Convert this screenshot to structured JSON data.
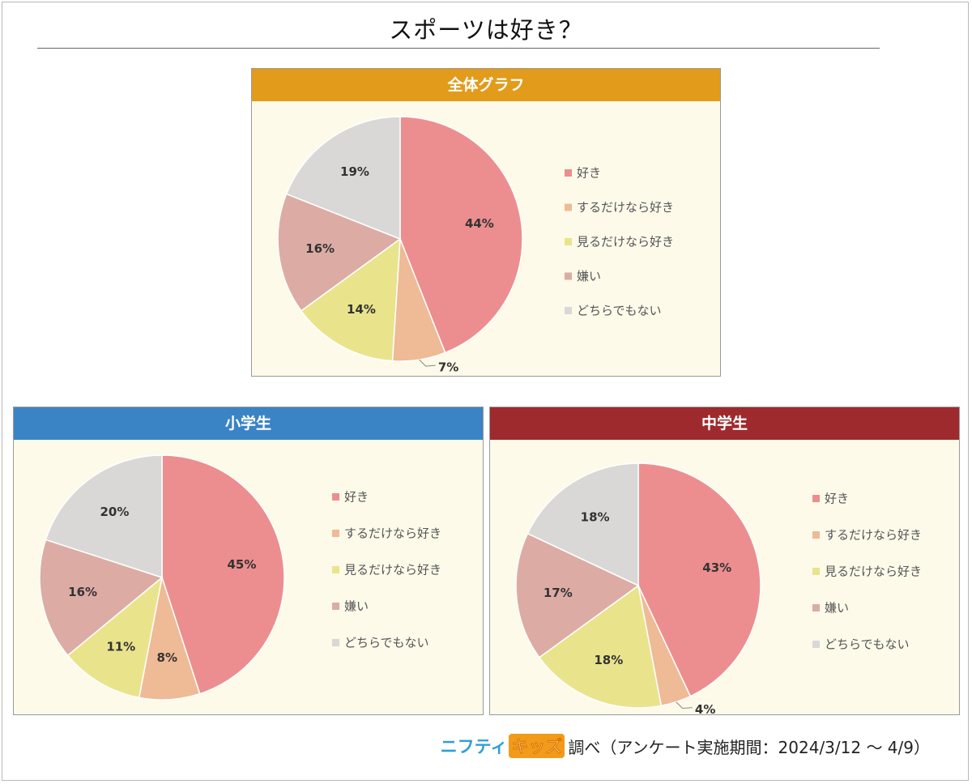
{
  "page": {
    "title": "スポーツは好き？"
  },
  "colors": {
    "like": "#ec8e8f",
    "do_only": "#efba96",
    "watch_only": "#e9e48c",
    "dislike": "#dcaca4",
    "neither": "#d9d8d7"
  },
  "legend": [
    "好き",
    "するだけなら好き",
    "見るだけなら好き",
    "嫌い",
    "どちらでもない"
  ],
  "chart_data": [
    {
      "type": "pie",
      "title": "全体グラフ",
      "header_color": "#e29b1b",
      "categories": [
        "好き",
        "するだけなら好き",
        "見るだけなら好き",
        "嫌い",
        "どちらでもない"
      ],
      "values": [
        44,
        7,
        14,
        16,
        19
      ],
      "labels": [
        "44%",
        "7%",
        "14%",
        "16%",
        "19%"
      ],
      "legend_position": "right"
    },
    {
      "type": "pie",
      "title": "小学生",
      "header_color": "#3a84c6",
      "categories": [
        "好き",
        "するだけなら好き",
        "見るだけなら好き",
        "嫌い",
        "どちらでもない"
      ],
      "values": [
        45,
        8,
        11,
        16,
        20
      ],
      "labels": [
        "45%",
        "8%",
        "11%",
        "16%",
        "20%"
      ],
      "legend_position": "right"
    },
    {
      "type": "pie",
      "title": "中学生",
      "header_color": "#9e2a2d",
      "categories": [
        "好き",
        "するだけなら好き",
        "見るだけなら好き",
        "嫌い",
        "どちらでもない"
      ],
      "values": [
        43,
        4,
        18,
        17,
        18
      ],
      "labels": [
        "43%",
        "4%",
        "18%",
        "17%",
        "18%"
      ],
      "legend_position": "right"
    }
  ],
  "footer": {
    "logo_part1": "ニフティ",
    "logo_part2": "キッズ",
    "text": "調べ（アンケート実施期間：2024/3/12 ～ 4/9）"
  }
}
